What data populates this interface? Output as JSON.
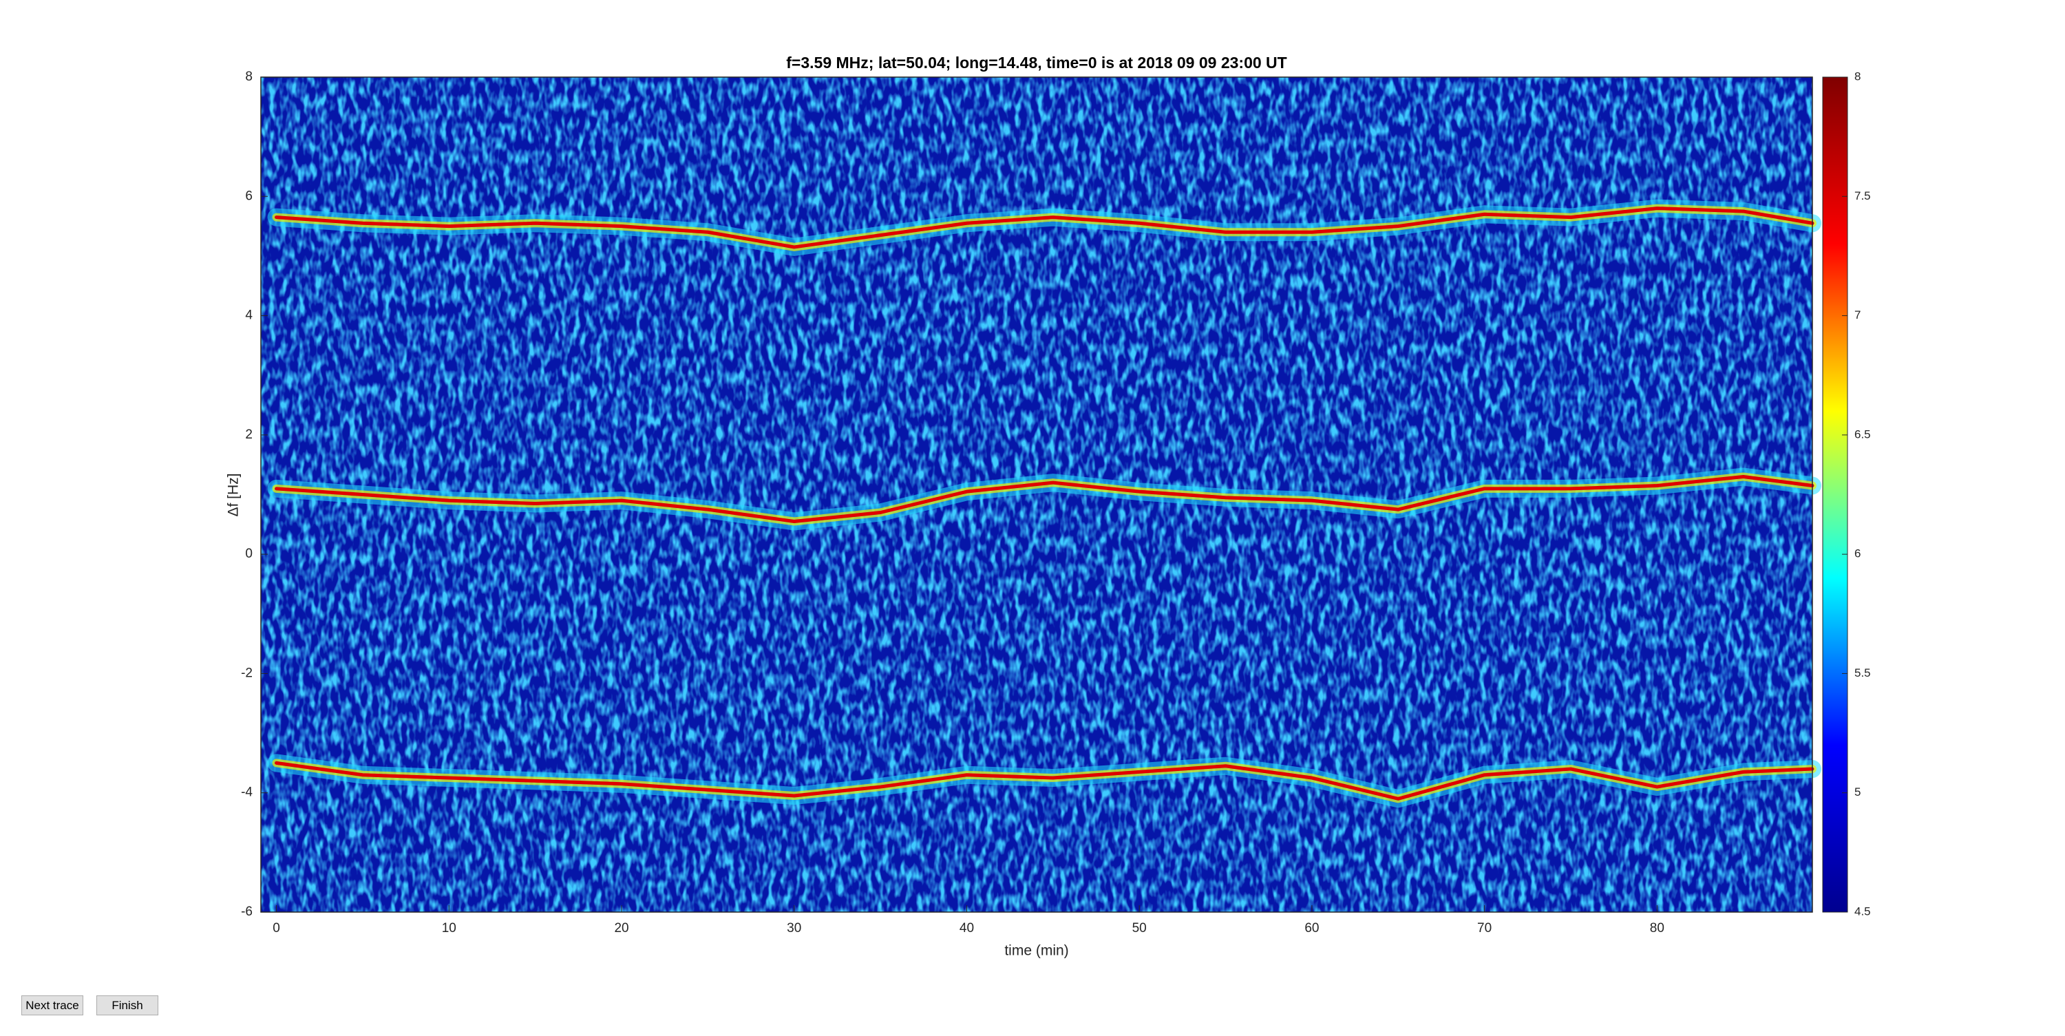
{
  "chart_data": {
    "type": "spectrogram",
    "title": "f=3.59 MHz;  lat=50.04; long=14.48, time=0 is at 2018 09 09 23:00 UT",
    "x_label": "time (min)",
    "y_label": "Δf [Hz]",
    "xlim": [
      -0.9,
      89
    ],
    "xticks": [
      0,
      10,
      20,
      30,
      40,
      50,
      60,
      70,
      80
    ],
    "ylim": [
      -6,
      8
    ],
    "yticks": [
      -6,
      -4,
      -2,
      0,
      2,
      4,
      6,
      8
    ],
    "clim": [
      4.5,
      8
    ],
    "cticks": [
      4.5,
      5,
      5.5,
      6,
      6.5,
      7,
      7.5,
      8
    ],
    "colormap": [
      "#00008f",
      "#0000ff",
      "#00ffff",
      "#ffff00",
      "#ff0000",
      "#800000"
    ],
    "x": [
      0,
      5,
      10,
      15,
      20,
      25,
      30,
      35,
      40,
      45,
      50,
      55,
      60,
      65,
      70,
      75,
      80,
      85,
      89
    ],
    "series": [
      {
        "color": "#e00000",
        "values": [
          5.65,
          5.55,
          5.5,
          5.55,
          5.5,
          5.4,
          5.15,
          5.35,
          5.55,
          5.65,
          5.55,
          5.4,
          5.4,
          5.5,
          5.7,
          5.65,
          5.8,
          5.75,
          5.55
        ]
      },
      {
        "color": "#e00000",
        "values": [
          1.1,
          1.0,
          0.9,
          0.85,
          0.9,
          0.75,
          0.55,
          0.7,
          1.05,
          1.2,
          1.05,
          0.95,
          0.9,
          0.75,
          1.1,
          1.1,
          1.15,
          1.3,
          1.15
        ]
      },
      {
        "color": "#e00000",
        "values": [
          -3.5,
          -3.7,
          -3.75,
          -3.8,
          -3.85,
          -3.95,
          -4.05,
          -3.9,
          -3.7,
          -3.75,
          -3.65,
          -3.55,
          -3.75,
          -4.1,
          -3.7,
          -3.6,
          -3.9,
          -3.65,
          -3.6
        ]
      }
    ]
  },
  "ui": {
    "buttons": [
      "Next trace",
      "Finish"
    ]
  }
}
